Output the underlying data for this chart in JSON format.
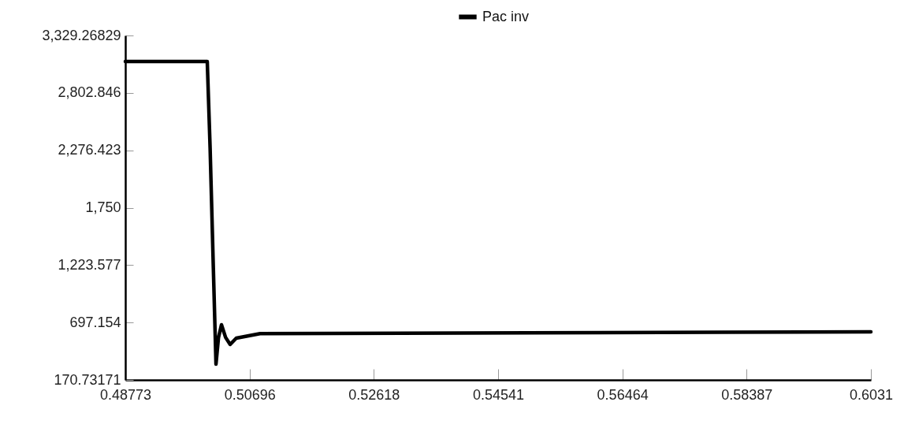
{
  "chart_data": {
    "type": "line",
    "legend": "top",
    "grid": false,
    "marker": "none",
    "line_style": "solid",
    "xlim": [
      0.48773,
      0.6031
    ],
    "xticks": [
      0.48773,
      0.50696,
      0.52618,
      0.54541,
      0.56464,
      0.58387,
      0.6031
    ],
    "ylim": [
      170.73171,
      3329.26829
    ],
    "yticks": [
      170.73171,
      {
        "value": 697.154,
        "label": "697.154"
      },
      {
        "value": 1223.577,
        "label": "1,223.577"
      },
      {
        "value": 1750,
        "label": "1,750"
      },
      {
        "value": 2276.423,
        "label": "2,276.423"
      },
      {
        "value": 2802.846,
        "label": "2,802.846"
      },
      {
        "value": 3329.26829,
        "label": "3,329.26829"
      }
    ],
    "series": [
      {
        "name": "Pac inv",
        "color": "#000000",
        "x": [
          0.48773,
          0.50041,
          0.50085,
          0.50135,
          0.50176,
          0.50215,
          0.50261,
          0.50325,
          0.50395,
          0.5049,
          0.50858,
          0.52,
          0.55,
          0.58,
          0.6031
        ],
        "values": [
          3091,
          3091,
          2300,
          1200,
          315,
          560,
          677,
          560,
          496,
          554,
          595,
          598,
          603,
          608,
          612
        ]
      }
    ]
  }
}
